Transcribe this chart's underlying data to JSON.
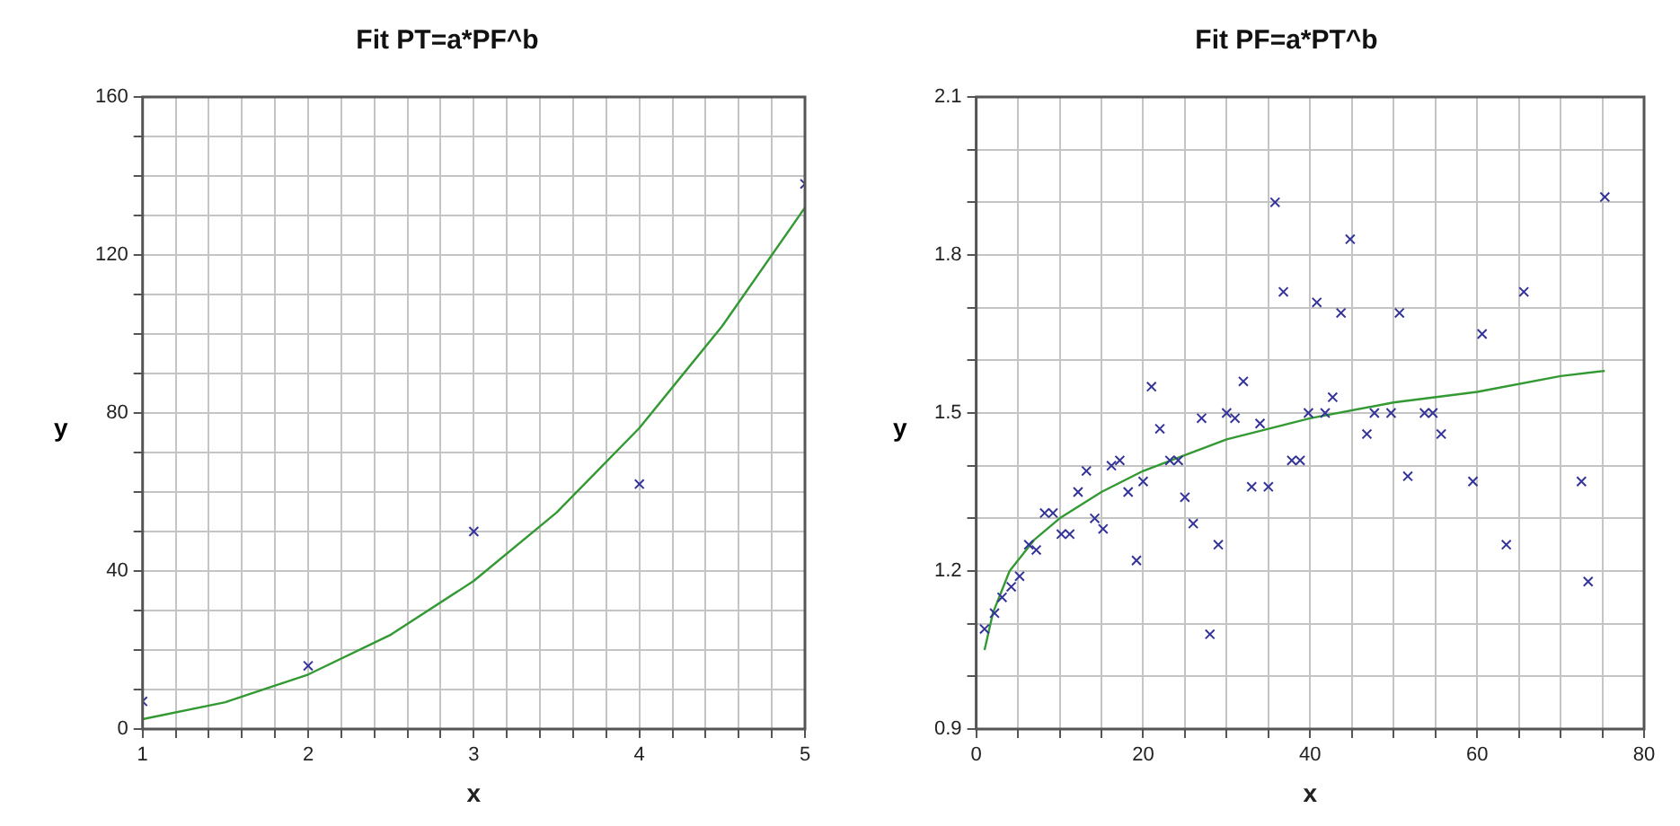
{
  "chart_data": [
    {
      "type": "scatter",
      "title": "Fit PT=a*PF^b",
      "xlabel": "x",
      "ylabel": "y",
      "marker": "cross",
      "grid": true,
      "legend": false,
      "x": [
        1,
        2,
        3,
        4,
        5
      ],
      "series": [
        {
          "color": "#333399",
          "values": [
            7,
            16,
            50,
            62,
            138
          ]
        },
        {
          "type": "line",
          "color": "#339933",
          "marker": "none",
          "line_style": "solid",
          "x": [
            1,
            1.5,
            2,
            2.5,
            3,
            3.5,
            4,
            4.5,
            5
          ],
          "values": [
            2.5,
            6.8,
            13.8,
            23.9,
            37.5,
            54.8,
            76.2,
            102,
            132
          ]
        }
      ],
      "xlim": [
        1,
        5
      ],
      "xticks": [
        1,
        {
          "value": 1.2,
          "label": null
        },
        {
          "value": 1.4,
          "label": null
        },
        {
          "value": 1.6,
          "label": null
        },
        {
          "value": 1.8,
          "label": null
        },
        2,
        {
          "value": 2.2,
          "label": null
        },
        {
          "value": 2.4,
          "label": null
        },
        {
          "value": 2.6,
          "label": null
        },
        {
          "value": 2.8,
          "label": null
        },
        3,
        {
          "value": 3.2,
          "label": null
        },
        {
          "value": 3.4,
          "label": null
        },
        {
          "value": 3.6,
          "label": null
        },
        {
          "value": 3.8,
          "label": null
        },
        4,
        {
          "value": 4.2,
          "label": null
        },
        {
          "value": 4.4,
          "label": null
        },
        {
          "value": 4.6,
          "label": null
        },
        {
          "value": 4.8,
          "label": null
        },
        5
      ],
      "ylim": [
        0,
        160
      ],
      "yticks": [
        0,
        {
          "value": 10,
          "label": null
        },
        {
          "value": 20,
          "label": null
        },
        {
          "value": 30,
          "label": null
        },
        40,
        {
          "value": 50,
          "label": null
        },
        {
          "value": 60,
          "label": null
        },
        {
          "value": 70,
          "label": null
        },
        80,
        {
          "value": 90,
          "label": null
        },
        {
          "value": 100,
          "label": null
        },
        {
          "value": 110,
          "label": null
        },
        120,
        {
          "value": 130,
          "label": null
        },
        {
          "value": 140,
          "label": null
        },
        {
          "value": 150,
          "label": null
        },
        160
      ]
    },
    {
      "type": "scatter",
      "title": "Fit PF=a*PT^b",
      "xlabel": "x",
      "ylabel": "y",
      "marker": "cross",
      "grid": true,
      "legend": false,
      "x": [
        1,
        2.2,
        3.1,
        4.2,
        5.2,
        6.3,
        7.2,
        8.2,
        9.2,
        10.2,
        11.2,
        12.2,
        13.2,
        14.2,
        15.2,
        16.2,
        17.2,
        18.2,
        19.2,
        20,
        21,
        22,
        23.2,
        24.2,
        25,
        26,
        27,
        28,
        29,
        30,
        31,
        32,
        33,
        34,
        35,
        35.8,
        36.8,
        37.8,
        38.8,
        39.8,
        40.8,
        41.8,
        42.7,
        43.7,
        44.8,
        46.8,
        47.7,
        49.7,
        50.7,
        51.7,
        53.7,
        54.7,
        55.7,
        59.5,
        60.6,
        63.5,
        65.6,
        72.5,
        73.3,
        75.3
      ],
      "series": [
        {
          "color": "#333399",
          "values": [
            1.09,
            1.12,
            1.15,
            1.17,
            1.19,
            1.25,
            1.24,
            1.31,
            1.31,
            1.27,
            1.27,
            1.35,
            1.39,
            1.3,
            1.28,
            1.4,
            1.41,
            1.35,
            1.22,
            1.37,
            1.55,
            1.47,
            1.41,
            1.41,
            1.34,
            1.29,
            1.49,
            1.08,
            1.25,
            1.5,
            1.49,
            1.56,
            1.36,
            1.48,
            1.36,
            1.9,
            1.73,
            1.41,
            1.41,
            1.5,
            1.71,
            1.5,
            1.53,
            1.69,
            1.83,
            1.46,
            1.5,
            1.5,
            1.69,
            1.38,
            1.5,
            1.5,
            1.46,
            1.37,
            1.65,
            1.25,
            1.73,
            1.37,
            1.18,
            1.91
          ]
        },
        {
          "type": "line",
          "color": "#339933",
          "marker": "none",
          "line_style": "solid",
          "x": [
            1,
            2,
            4,
            7,
            10,
            15,
            20,
            30,
            40,
            50,
            60,
            70,
            75.3
          ],
          "values": [
            1.05,
            1.12,
            1.2,
            1.26,
            1.3,
            1.35,
            1.39,
            1.45,
            1.49,
            1.52,
            1.54,
            1.57,
            1.58
          ]
        }
      ],
      "xlim": [
        0,
        80
      ],
      "xticks": [
        0,
        {
          "value": 5,
          "label": null
        },
        {
          "value": 10,
          "label": null
        },
        {
          "value": 15,
          "label": null
        },
        20,
        {
          "value": 25,
          "label": null
        },
        {
          "value": 30,
          "label": null
        },
        {
          "value": 35,
          "label": null
        },
        40,
        {
          "value": 45,
          "label": null
        },
        {
          "value": 50,
          "label": null
        },
        {
          "value": 55,
          "label": null
        },
        60,
        {
          "value": 65,
          "label": null
        },
        {
          "value": 70,
          "label": null
        },
        {
          "value": 75,
          "label": null
        },
        80
      ],
      "ylim": [
        0.9,
        2.1
      ],
      "yticks": [
        0.9,
        {
          "value": 1,
          "label": null
        },
        {
          "value": 1.1,
          "label": null
        },
        1.2,
        {
          "value": 1.3,
          "label": null
        },
        {
          "value": 1.4,
          "label": null
        },
        1.5,
        {
          "value": 1.6,
          "label": null
        },
        {
          "value": 1.7,
          "label": null
        },
        1.8,
        {
          "value": 1.9,
          "label": null
        },
        {
          "value": 2,
          "label": null
        },
        2.1
      ]
    }
  ]
}
